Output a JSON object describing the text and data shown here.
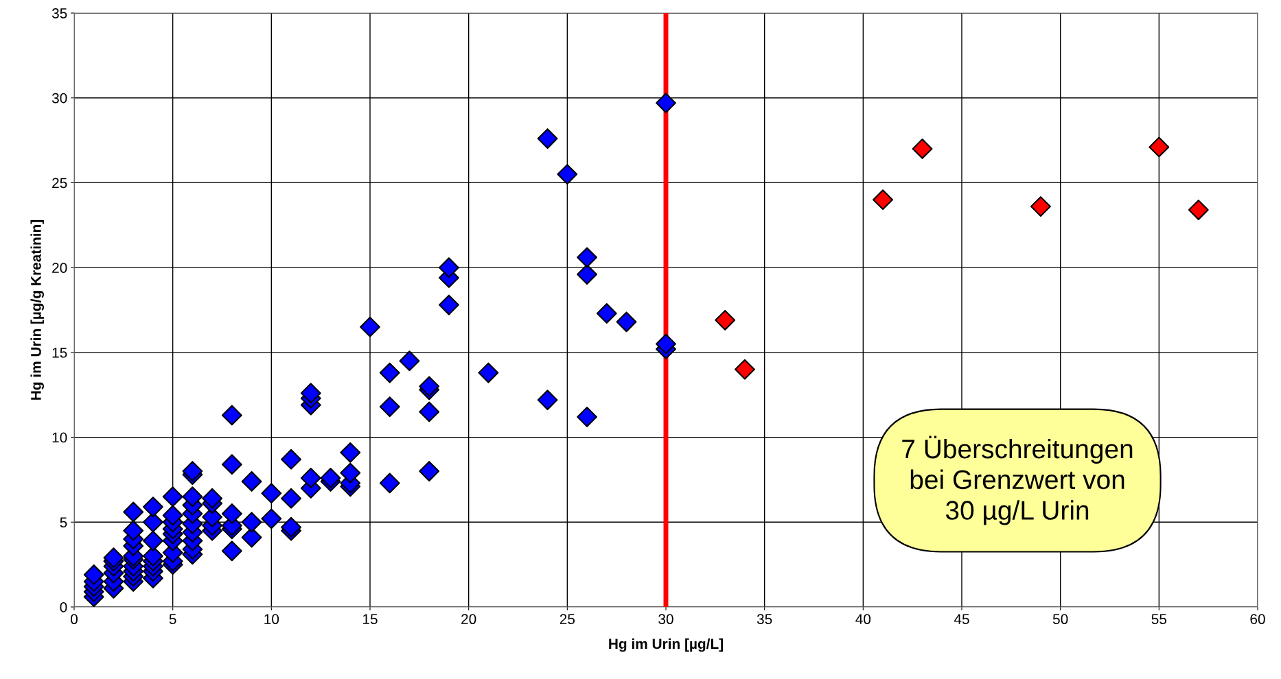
{
  "chart_data": {
    "type": "scatter",
    "xlabel": "Hg im Urin [µg/L]",
    "ylabel": "Hg im Urin [µg/g Kreatinin]",
    "xlim": [
      0,
      60
    ],
    "xticks": [
      0,
      5,
      10,
      15,
      20,
      25,
      30,
      35,
      40,
      45,
      50,
      55,
      60
    ],
    "ylim": [
      0,
      35
    ],
    "yticks": [
      0,
      5,
      10,
      15,
      20,
      25,
      30,
      35
    ],
    "grid": true,
    "marker": "diamond",
    "series": [
      {
        "color": "#0000ff",
        "x": [
          1,
          1,
          1,
          1,
          1,
          2,
          2,
          2,
          2,
          2,
          2,
          3,
          3,
          3,
          3,
          3,
          3,
          3,
          3,
          3,
          3,
          4,
          4,
          4,
          4,
          4,
          4,
          4,
          4,
          5,
          5,
          5,
          5,
          5,
          5,
          5,
          5,
          5,
          6,
          6,
          6,
          6,
          6,
          6,
          6,
          6,
          6,
          6,
          7,
          7,
          7,
          7,
          7,
          8,
          8,
          8,
          8,
          8,
          8,
          9,
          9,
          9,
          10,
          10,
          11,
          11,
          11,
          11,
          12,
          12,
          12,
          12,
          12,
          13,
          13,
          14,
          14,
          14,
          14,
          15,
          16,
          16,
          16,
          17,
          18,
          18,
          18,
          18,
          19,
          19,
          19,
          21,
          24,
          24,
          25,
          26,
          26,
          26,
          27,
          28,
          30,
          30,
          30
        ],
        "values": [
          0.6,
          0.9,
          1.2,
          1.5,
          1.9,
          1.1,
          1.5,
          2.0,
          2.4,
          2.7,
          2.9,
          1.5,
          1.8,
          2.1,
          2.4,
          2.8,
          3.0,
          3.6,
          4.0,
          4.5,
          5.6,
          1.7,
          2.1,
          2.4,
          2.7,
          3.0,
          3.9,
          5.0,
          5.9,
          2.5,
          2.7,
          3.2,
          3.9,
          4.3,
          4.6,
          5.0,
          5.4,
          6.5,
          3.1,
          3.4,
          3.9,
          4.4,
          4.9,
          5.5,
          6.0,
          6.5,
          7.8,
          8.0,
          4.5,
          4.8,
          5.3,
          6.1,
          6.4,
          3.3,
          4.6,
          4.8,
          5.5,
          8.4,
          11.3,
          4.1,
          5.0,
          7.4,
          5.2,
          6.7,
          4.5,
          4.7,
          6.4,
          8.7,
          7.0,
          7.6,
          11.9,
          12.3,
          12.6,
          7.4,
          7.6,
          7.1,
          7.3,
          7.9,
          9.1,
          16.5,
          7.3,
          11.8,
          13.8,
          14.5,
          8.0,
          11.5,
          12.8,
          13.0,
          17.8,
          19.4,
          20.0,
          13.8,
          12.2,
          27.6,
          25.5,
          11.2,
          19.6,
          20.6,
          17.3,
          16.8,
          15.2,
          15.5,
          29.7
        ]
      },
      {
        "color": "#ff0000",
        "x": [
          33,
          34,
          41,
          43,
          49,
          55,
          57
        ],
        "values": [
          16.9,
          14.0,
          24.0,
          27.0,
          23.6,
          27.1,
          23.4
        ]
      }
    ],
    "ref_lines": [
      {
        "axis": "x",
        "value": 30,
        "color": "#ff0000",
        "line_style": "solid"
      }
    ],
    "annotations": [
      "7 Überschreitungen\nbei Grenzwert von\n30 µg/L Urin"
    ]
  }
}
